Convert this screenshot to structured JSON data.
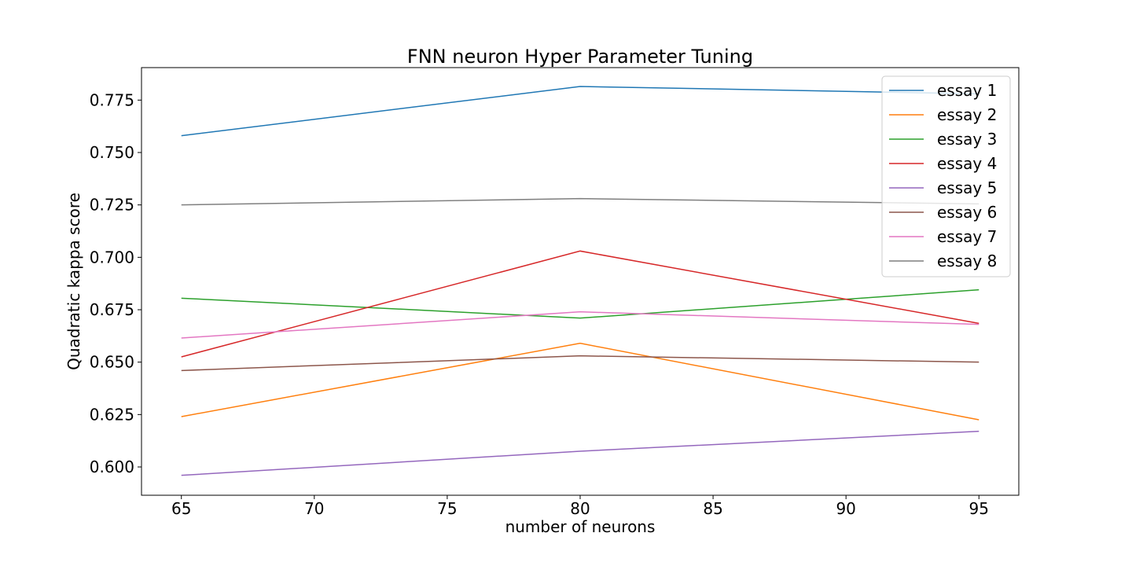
{
  "chart_data": {
    "type": "line",
    "title": "FNN neuron Hyper Parameter Tuning",
    "xlabel": "number of neurons",
    "ylabel": "Quadratic kappa score",
    "x": [
      65,
      80,
      95
    ],
    "xlim": [
      63.5,
      96.5
    ],
    "ylim": [
      0.5865,
      0.7905
    ],
    "xticks": [
      65,
      70,
      75,
      80,
      85,
      90,
      95
    ],
    "yticks": [
      0.6,
      0.625,
      0.65,
      0.675,
      0.7,
      0.725,
      0.75,
      0.775
    ],
    "yticks_labels": [
      "0.600",
      "0.625",
      "0.650",
      "0.675",
      "0.700",
      "0.725",
      "0.750",
      "0.775"
    ],
    "grid": false,
    "legend_position": "top-right",
    "series": [
      {
        "name": "essay 1",
        "color": "#1f77b4",
        "values": [
          0.758,
          0.7815,
          0.778
        ]
      },
      {
        "name": "essay 2",
        "color": "#ff7f0e",
        "values": [
          0.624,
          0.659,
          0.6225
        ]
      },
      {
        "name": "essay 3",
        "color": "#2ca02c",
        "values": [
          0.6805,
          0.671,
          0.6845
        ]
      },
      {
        "name": "essay 4",
        "color": "#d62728",
        "values": [
          0.6525,
          0.703,
          0.6685
        ]
      },
      {
        "name": "essay 5",
        "color": "#9467bd",
        "values": [
          0.596,
          0.6075,
          0.617
        ]
      },
      {
        "name": "essay 6",
        "color": "#8c564b",
        "values": [
          0.646,
          0.653,
          0.65
        ]
      },
      {
        "name": "essay 7",
        "color": "#e377c2",
        "values": [
          0.6615,
          0.674,
          0.668
        ]
      },
      {
        "name": "essay 8",
        "color": "#7f7f7f",
        "values": [
          0.725,
          0.728,
          0.7255
        ]
      }
    ]
  }
}
